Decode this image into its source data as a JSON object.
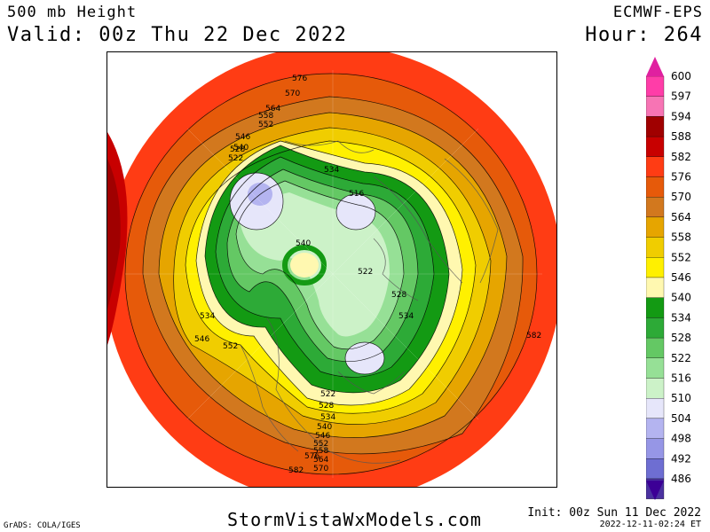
{
  "header": {
    "title": "500 mb Height",
    "valid": "Valid: 00z Thu 22 Dec 2022",
    "model": "ECMWF-EPS",
    "hour": "Hour: 264"
  },
  "footer": {
    "site": "StormVistaWxModels.com",
    "init": "Init: 00z Sun 11 Dec 2022",
    "timestamp": "2022-12-11-02:24 ET",
    "credit": "GrADS: COLA/IGES"
  },
  "legend": {
    "levels": [
      {
        "value": "600",
        "color": "#ff3da8"
      },
      {
        "value": "597",
        "color": "#f774b4"
      },
      {
        "value": "594",
        "color": "#a00000"
      },
      {
        "value": "588",
        "color": "#c80000"
      },
      {
        "value": "582",
        "color": "#ff3c14"
      },
      {
        "value": "576",
        "color": "#e65a0a"
      },
      {
        "value": "570",
        "color": "#d2781e"
      },
      {
        "value": "564",
        "color": "#e6a500"
      },
      {
        "value": "558",
        "color": "#f0cd00"
      },
      {
        "value": "552",
        "color": "#fff000"
      },
      {
        "value": "546",
        "color": "#fff8b0"
      },
      {
        "value": "540",
        "color": "#139a13"
      },
      {
        "value": "534",
        "color": "#2daa37"
      },
      {
        "value": "528",
        "color": "#64c864"
      },
      {
        "value": "522",
        "color": "#96e096"
      },
      {
        "value": "516",
        "color": "#ccf2c8"
      },
      {
        "value": "510",
        "color": "#e6e6fa"
      },
      {
        "value": "504",
        "color": "#b4b4f0"
      },
      {
        "value": "498",
        "color": "#9696e6"
      },
      {
        "value": "492",
        "color": "#6e6ed2"
      },
      {
        "value": "486",
        "color": "#4b32a0"
      }
    ],
    "top_arrow_color": "#e020a0",
    "bottom_arrow_color": "#3c0096"
  },
  "map": {
    "contour_labels": [
      "576",
      "570",
      "564",
      "558",
      "552",
      "546",
      "540",
      "528",
      "522",
      "534",
      "516",
      "540",
      "522",
      "528",
      "534",
      "534",
      "546",
      "552",
      "582",
      "522",
      "528",
      "534",
      "540",
      "546",
      "552",
      "558",
      "564",
      "570",
      "576",
      "582"
    ]
  }
}
